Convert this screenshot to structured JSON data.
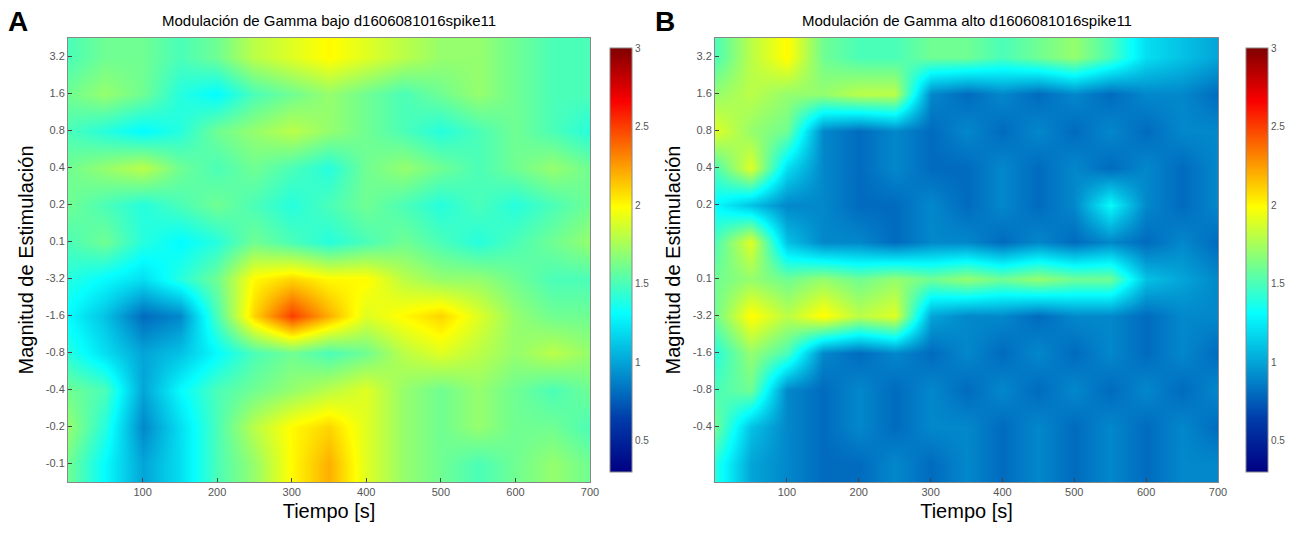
{
  "chart_data": [
    {
      "type": "heatmap",
      "title": "Modulación de Gamma bajo d1606081016spike11",
      "annotations": [
        "A"
      ],
      "x_label": "Tiempo [s]",
      "y_label": "Magnitud de Estimulación",
      "x": [
        0,
        50,
        100,
        150,
        200,
        250,
        300,
        350,
        400,
        450,
        500,
        550,
        600,
        650,
        700
      ],
      "categories": [
        "3.2",
        "1.6",
        "0.8",
        "0.4",
        "0.2",
        "0.1",
        "-3.2",
        "-1.6",
        "-0.8",
        "-0.4",
        "-0.2",
        "-0.1"
      ],
      "cells": [
        [
          1.5,
          1.6,
          1.6,
          1.5,
          1.6,
          1.8,
          1.9,
          2.0,
          1.9,
          1.8,
          1.7,
          1.7,
          1.6,
          1.5,
          1.5
        ],
        [
          1.6,
          1.7,
          1.6,
          1.4,
          1.3,
          1.5,
          1.6,
          1.7,
          1.6,
          1.5,
          1.6,
          1.7,
          1.6,
          1.5,
          1.5
        ],
        [
          1.5,
          1.4,
          1.3,
          1.4,
          1.6,
          1.7,
          1.8,
          1.7,
          1.6,
          1.5,
          1.4,
          1.5,
          1.6,
          1.5,
          1.4
        ],
        [
          1.6,
          1.7,
          1.8,
          1.6,
          1.5,
          1.6,
          1.5,
          1.4,
          1.6,
          1.7,
          1.6,
          1.5,
          1.6,
          1.7,
          1.6
        ],
        [
          1.6,
          1.5,
          1.4,
          1.5,
          1.6,
          1.5,
          1.4,
          1.5,
          1.6,
          1.5,
          1.4,
          1.5,
          1.4,
          1.5,
          1.6
        ],
        [
          1.5,
          1.6,
          1.4,
          1.3,
          1.4,
          1.6,
          1.5,
          1.4,
          1.5,
          1.6,
          1.5,
          1.4,
          1.5,
          1.6,
          1.7
        ],
        [
          1.4,
          1.3,
          1.2,
          1.4,
          1.6,
          2.0,
          2.1,
          2.0,
          2.0,
          1.8,
          1.7,
          1.7,
          1.6,
          1.5,
          1.5
        ],
        [
          1.3,
          1.1,
          0.8,
          0.9,
          1.5,
          2.1,
          2.5,
          2.2,
          1.9,
          2.0,
          2.1,
          1.9,
          1.7,
          1.6,
          1.6
        ],
        [
          1.4,
          1.2,
          1.0,
          1.1,
          1.3,
          1.5,
          1.6,
          1.5,
          1.6,
          1.8,
          1.9,
          1.8,
          1.7,
          1.8,
          1.7
        ],
        [
          1.6,
          1.5,
          1.0,
          1.3,
          1.5,
          1.6,
          1.7,
          1.8,
          1.9,
          1.7,
          1.6,
          1.7,
          1.6,
          1.5,
          1.6
        ],
        [
          1.7,
          1.4,
          0.9,
          1.2,
          1.5,
          1.8,
          2.0,
          2.1,
          1.9,
          1.7,
          1.6,
          1.7,
          1.6,
          1.6,
          1.5
        ],
        [
          1.6,
          1.3,
          1.0,
          1.2,
          1.5,
          1.7,
          2.0,
          2.2,
          1.9,
          1.7,
          1.6,
          1.5,
          1.6,
          1.7,
          1.6
        ]
      ],
      "xlim": [
        0,
        700
      ],
      "xticks": [
        100,
        200,
        300,
        400,
        500,
        600,
        700
      ],
      "colorbar": {
        "range": [
          0.3,
          3
        ],
        "ticks": [
          0.5,
          1,
          1.5,
          2,
          2.5,
          3
        ]
      }
    },
    {
      "type": "heatmap",
      "title": "Modulación de Gamma alto d1606081016spike11",
      "annotations": [
        "B"
      ],
      "x_label": "Tiempo [s]",
      "y_label": "Magnitud de Estimulación",
      "x": [
        0,
        50,
        100,
        150,
        200,
        250,
        300,
        350,
        400,
        450,
        500,
        550,
        600,
        650,
        700
      ],
      "categories": [
        "3.2",
        "1.6",
        "0.8",
        "0.4",
        "0.2",
        null,
        "0.1",
        "-3.2",
        "-1.6",
        "-0.8",
        "-0.4",
        null
      ],
      "cells": [
        [
          1.5,
          1.8,
          2.0,
          1.6,
          1.5,
          1.5,
          1.6,
          1.6,
          1.5,
          1.6,
          1.7,
          1.5,
          1.2,
          1.1,
          1.0
        ],
        [
          1.7,
          1.8,
          1.7,
          1.7,
          1.8,
          1.8,
          0.9,
          0.8,
          0.9,
          0.8,
          0.9,
          0.8,
          0.9,
          0.9,
          0.8
        ],
        [
          1.9,
          1.7,
          1.6,
          0.9,
          0.8,
          0.9,
          0.8,
          0.9,
          0.8,
          0.9,
          0.8,
          0.9,
          0.8,
          0.9,
          0.9
        ],
        [
          1.5,
          1.9,
          1.2,
          0.9,
          0.8,
          0.9,
          0.8,
          0.8,
          0.9,
          0.8,
          0.9,
          0.8,
          0.9,
          0.8,
          0.9
        ],
        [
          1.3,
          1.1,
          0.9,
          0.9,
          0.8,
          0.8,
          0.9,
          0.8,
          0.9,
          0.8,
          0.9,
          1.3,
          0.9,
          0.8,
          0.9
        ],
        [
          1.5,
          1.9,
          1.1,
          0.9,
          0.9,
          0.8,
          0.9,
          0.9,
          0.8,
          0.9,
          0.8,
          0.9,
          0.8,
          0.9,
          0.8
        ],
        [
          1.6,
          1.7,
          1.6,
          1.7,
          1.6,
          1.7,
          1.6,
          1.7,
          1.6,
          1.7,
          1.6,
          1.6,
          1.1,
          1.0,
          0.9
        ],
        [
          1.6,
          2.0,
          1.8,
          2.0,
          1.8,
          1.9,
          1.0,
          0.9,
          0.9,
          0.8,
          0.9,
          0.9,
          0.8,
          0.9,
          0.9
        ],
        [
          1.4,
          1.7,
          1.5,
          0.9,
          0.8,
          0.9,
          0.8,
          0.9,
          0.8,
          0.9,
          0.8,
          0.9,
          0.8,
          0.9,
          0.8
        ],
        [
          1.5,
          1.6,
          0.9,
          0.8,
          0.9,
          0.8,
          0.9,
          0.8,
          0.9,
          0.8,
          0.9,
          0.8,
          0.9,
          0.8,
          0.9
        ],
        [
          1.6,
          1.1,
          0.9,
          0.8,
          0.9,
          0.8,
          0.9,
          0.9,
          0.8,
          0.9,
          0.8,
          0.9,
          0.8,
          0.9,
          0.8
        ],
        [
          1.4,
          1.0,
          0.9,
          0.8,
          0.8,
          0.9,
          0.8,
          0.9,
          0.8,
          0.9,
          0.8,
          0.9,
          0.8,
          0.9,
          0.9
        ]
      ],
      "xlim": [
        0,
        700
      ],
      "xticks": [
        100,
        200,
        300,
        400,
        500,
        600,
        700
      ],
      "colorbar": {
        "range": [
          0.3,
          3
        ],
        "ticks": [
          0.5,
          1,
          1.5,
          2,
          2.5,
          3
        ]
      }
    }
  ]
}
